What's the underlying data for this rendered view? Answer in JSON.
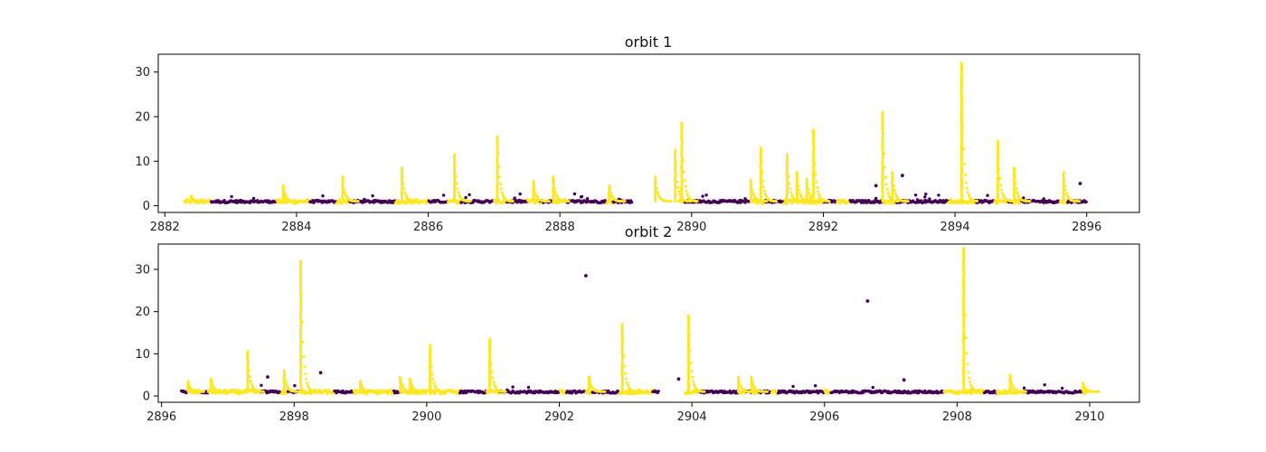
{
  "chart_data": [
    {
      "type": "scatter",
      "title": "orbit 1",
      "xlim": [
        2881.9,
        2896.8
      ],
      "ylim": [
        -1.5,
        34
      ],
      "xticks": [
        2882,
        2884,
        2886,
        2888,
        2890,
        2892,
        2894,
        2896
      ],
      "yticks": [
        0,
        10,
        20,
        30
      ],
      "grid": false,
      "data_gap": [
        2889.1,
        2889.8
      ],
      "point_x_range": [
        2882.3,
        2896.0
      ],
      "colors": {
        "class_0": "#440154",
        "class_1": "#fde725"
      },
      "flare_segments": [
        [
          2882.3,
          2882.7
        ],
        [
          2883.7,
          2884.2
        ],
        [
          2884.6,
          2884.8
        ],
        [
          2885.5,
          2886.0
        ],
        [
          2886.3,
          2886.5
        ],
        [
          2887.0,
          2887.2
        ],
        [
          2887.5,
          2887.7
        ],
        [
          2887.9,
          2888.1
        ],
        [
          2888.7,
          2888.8
        ],
        [
          2889.4,
          2889.6
        ],
        [
          2889.7,
          2889.9
        ],
        [
          2890.9,
          2891.1
        ],
        [
          2891.4,
          2891.8
        ],
        [
          2891.8,
          2892.0
        ],
        [
          2892.2,
          2892.4
        ],
        [
          2892.9,
          2893.1
        ],
        [
          2893.9,
          2894.3
        ],
        [
          2894.6,
          2894.8
        ],
        [
          2894.9,
          2895.0
        ],
        [
          2895.6,
          2895.7
        ]
      ],
      "peaks": [
        {
          "x": 2882.4,
          "y": 2.2
        },
        {
          "x": 2883.8,
          "y": 4.5
        },
        {
          "x": 2884.7,
          "y": 6.5
        },
        {
          "x": 2885.6,
          "y": 8.5
        },
        {
          "x": 2886.4,
          "y": 11.5
        },
        {
          "x": 2887.05,
          "y": 15.5
        },
        {
          "x": 2887.6,
          "y": 5.5
        },
        {
          "x": 2887.9,
          "y": 6.5
        },
        {
          "x": 2888.75,
          "y": 4.5
        },
        {
          "x": 2889.45,
          "y": 6.5
        },
        {
          "x": 2889.75,
          "y": 12.5
        },
        {
          "x": 2889.85,
          "y": 18.5
        },
        {
          "x": 2890.9,
          "y": 5.8
        },
        {
          "x": 2891.05,
          "y": 13.0
        },
        {
          "x": 2891.45,
          "y": 11.5
        },
        {
          "x": 2891.6,
          "y": 7.5
        },
        {
          "x": 2891.75,
          "y": 6.0
        },
        {
          "x": 2891.85,
          "y": 17.0
        },
        {
          "x": 2892.9,
          "y": 21.0
        },
        {
          "x": 2893.05,
          "y": 7.5
        },
        {
          "x": 2894.1,
          "y": 32.0
        },
        {
          "x": 2894.65,
          "y": 14.5
        },
        {
          "x": 2894.9,
          "y": 8.5
        },
        {
          "x": 2895.65,
          "y": 7.5
        }
      ],
      "outliers": [
        {
          "x": 2893.2,
          "y": 6.8
        },
        {
          "x": 2895.9,
          "y": 5.0
        },
        {
          "x": 2892.8,
          "y": 4.5
        }
      ]
    },
    {
      "type": "scatter",
      "title": "orbit 2",
      "xlim": [
        2895.95,
        2910.75
      ],
      "ylim": [
        -1.5,
        36
      ],
      "xticks": [
        2896,
        2898,
        2900,
        2902,
        2904,
        2906,
        2908,
        2910
      ],
      "yticks": [
        0,
        10,
        20,
        30
      ],
      "grid": false,
      "data_gap": [
        2903.5,
        2903.9
      ],
      "point_x_range": [
        2896.3,
        2910.0
      ],
      "colors": {
        "class_0": "#440154",
        "class_1": "#fde725"
      },
      "flare_segments": [
        [
          2896.4,
          2896.6
        ],
        [
          2896.7,
          2897.3
        ],
        [
          2897.3,
          2897.5
        ],
        [
          2897.8,
          2897.9
        ],
        [
          2898.1,
          2898.6
        ],
        [
          2898.9,
          2899.5
        ],
        [
          2899.6,
          2900.5
        ],
        [
          2900.9,
          2901.1
        ],
        [
          2902.0,
          2902.1
        ],
        [
          2902.4,
          2902.5
        ],
        [
          2902.9,
          2903.4
        ],
        [
          2903.9,
          2904.1
        ],
        [
          2904.7,
          2904.8
        ],
        [
          2904.9,
          2905.0
        ],
        [
          2905.2,
          2905.3
        ],
        [
          2906.0,
          2906.1
        ],
        [
          2907.8,
          2908.4
        ],
        [
          2908.6,
          2909.0
        ],
        [
          2909.9,
          2910.0
        ]
      ],
      "peaks": [
        {
          "x": 2896.4,
          "y": 3.5
        },
        {
          "x": 2896.75,
          "y": 4.0
        },
        {
          "x": 2897.3,
          "y": 10.5
        },
        {
          "x": 2897.85,
          "y": 6.0
        },
        {
          "x": 2898.1,
          "y": 32.0
        },
        {
          "x": 2899.0,
          "y": 3.5
        },
        {
          "x": 2899.6,
          "y": 4.5
        },
        {
          "x": 2899.75,
          "y": 4.0
        },
        {
          "x": 2900.05,
          "y": 12.0
        },
        {
          "x": 2900.95,
          "y": 13.5
        },
        {
          "x": 2902.45,
          "y": 4.5
        },
        {
          "x": 2902.95,
          "y": 17.0
        },
        {
          "x": 2903.95,
          "y": 19.0
        },
        {
          "x": 2904.7,
          "y": 4.5
        },
        {
          "x": 2904.9,
          "y": 4.5
        },
        {
          "x": 2908.1,
          "y": 35.0
        },
        {
          "x": 2908.8,
          "y": 5.0
        },
        {
          "x": 2909.9,
          "y": 3.0
        }
      ],
      "outliers": [
        {
          "x": 2902.4,
          "y": 28.5
        },
        {
          "x": 2906.65,
          "y": 22.5
        },
        {
          "x": 2897.6,
          "y": 4.5
        },
        {
          "x": 2898.4,
          "y": 5.5
        },
        {
          "x": 2903.8,
          "y": 4.0
        },
        {
          "x": 2907.2,
          "y": 3.8
        }
      ]
    }
  ]
}
